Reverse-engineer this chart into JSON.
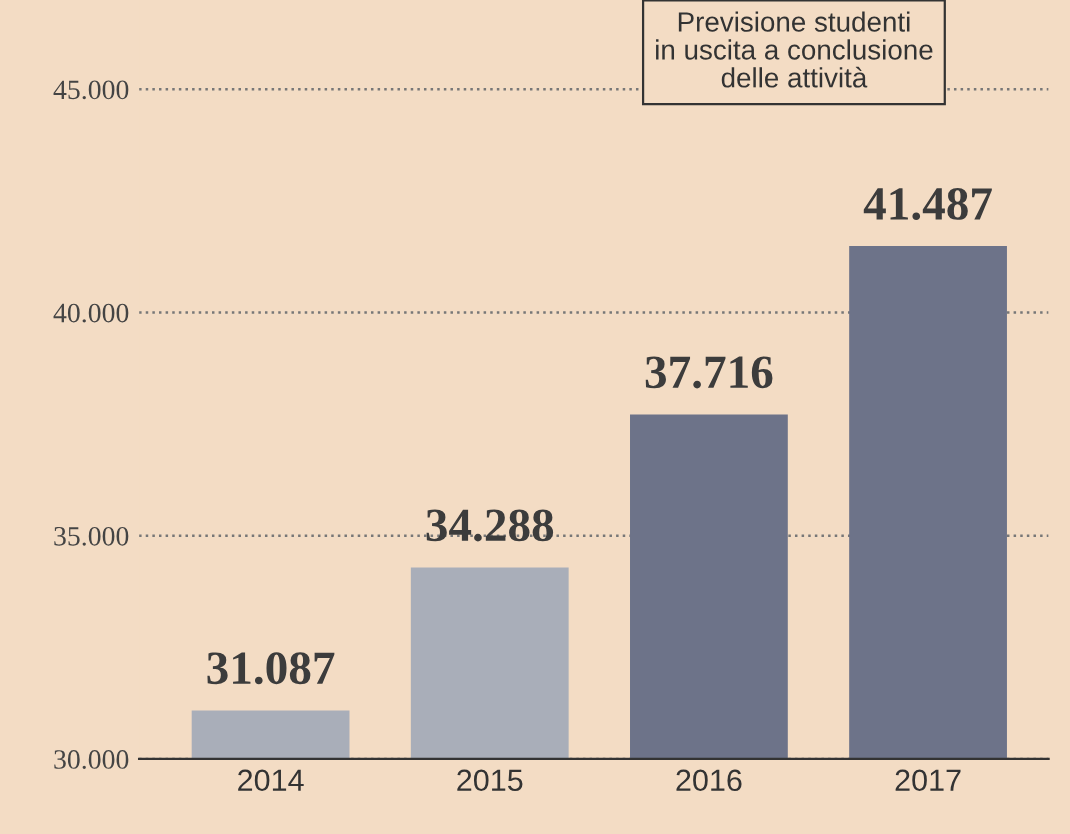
{
  "chart_data": {
    "type": "bar",
    "categories": [
      "2014",
      "2015",
      "2016",
      "2017"
    ],
    "values": [
      31087,
      34288,
      37716,
      41487
    ],
    "colors": [
      "#a9aeb9",
      "#a9aeb9",
      "#6d7389",
      "#6d7389"
    ],
    "value_labels": [
      "31.087",
      "34.288",
      "37.716",
      "41.487"
    ],
    "ylim": [
      30000,
      47000
    ],
    "yticks": [
      {
        "value": 30000,
        "label": "30.000"
      },
      {
        "value": 35000,
        "label": "35.000"
      },
      {
        "value": 40000,
        "label": "40.000"
      },
      {
        "value": 45000,
        "label": "45.000"
      }
    ],
    "grid": "y",
    "annotations": [
      "Previsione studenti\nin uscita a conclusione\ndelle attività"
    ]
  }
}
